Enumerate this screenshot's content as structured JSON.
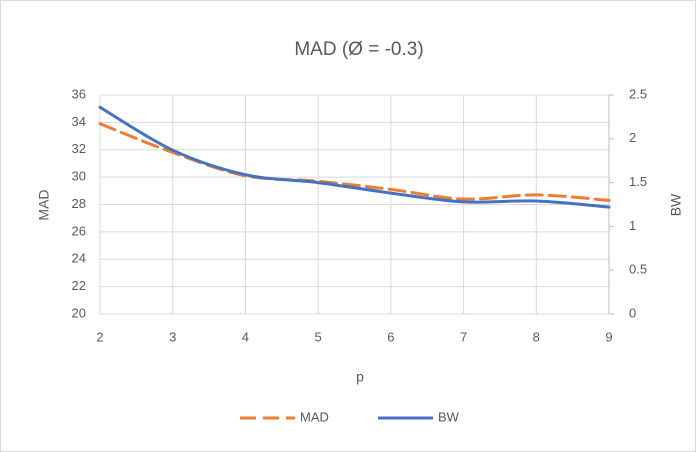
{
  "chart_data": {
    "type": "line",
    "title": "MAD (Ø = -0.3)",
    "x_label": "p",
    "y_label": "MAD",
    "y2_label": "BW",
    "x": [
      2,
      3,
      4,
      5,
      6,
      7,
      8,
      9
    ],
    "xlim": [
      2,
      9
    ],
    "xticks": [
      2,
      3,
      4,
      5,
      6,
      7,
      8,
      9
    ],
    "ylim": [
      20,
      36
    ],
    "yticks": [
      20,
      22,
      24,
      26,
      28,
      30,
      32,
      34,
      36
    ],
    "y2lim": [
      0,
      2.5
    ],
    "y2ticks": [
      0,
      0.5,
      1,
      1.5,
      2,
      2.5
    ],
    "grid": true,
    "legend": "bottom",
    "series": [
      {
        "name": "MAD",
        "color": "#ed7d31",
        "dash": true,
        "values": [
          33.9,
          31.8,
          30.1,
          29.7,
          29.1,
          28.4,
          28.7,
          28.3
        ]
      },
      {
        "name": "BW",
        "color": "#4472c4",
        "axis": "y2",
        "values": [
          2.36,
          1.87,
          1.59,
          1.5,
          1.38,
          1.28,
          1.29,
          1.22
        ]
      }
    ]
  }
}
